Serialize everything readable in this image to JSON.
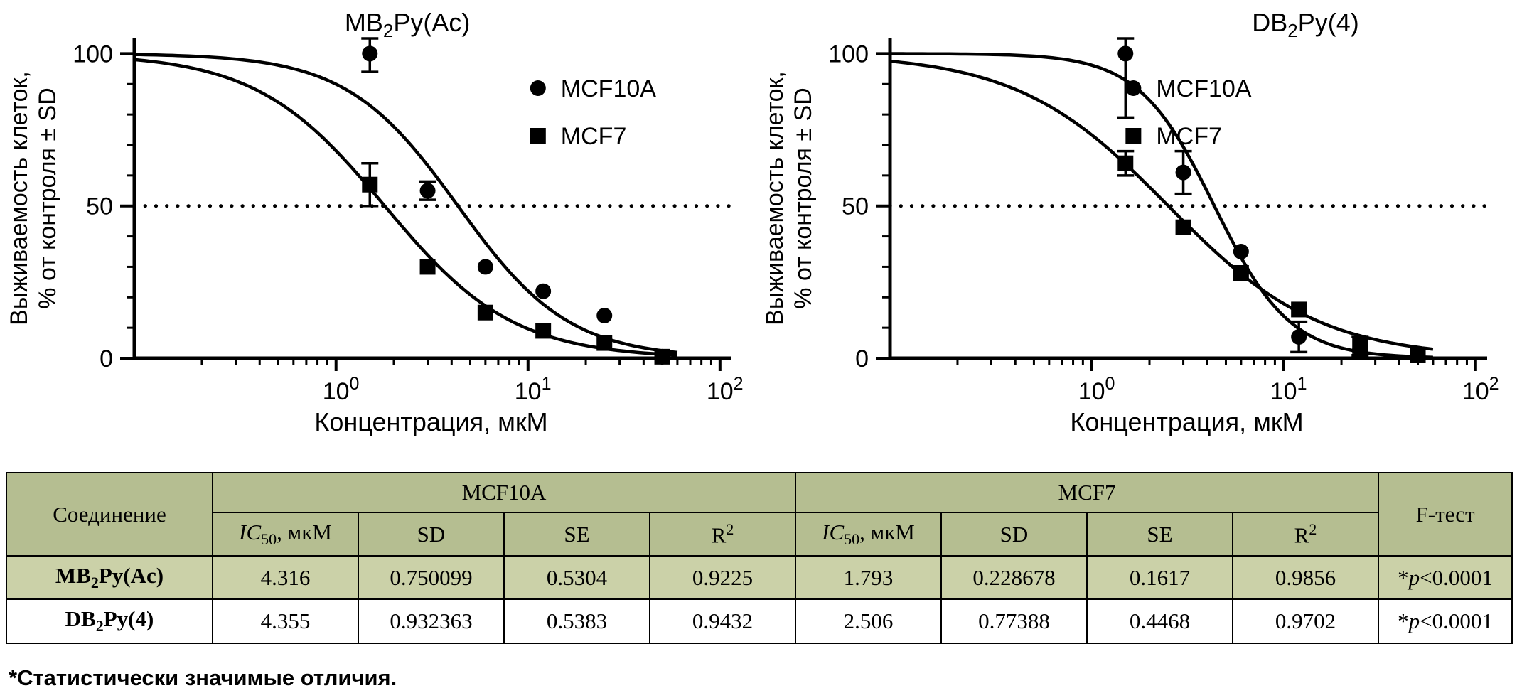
{
  "style": {
    "table_header_bg": "#b5be91",
    "table_row_tint": "#cbd1a8",
    "plot_color": "#000000"
  },
  "chart_data": [
    {
      "type": "scatter",
      "title": {
        "base": "MB",
        "sub": "2",
        "rest": "Py(Ac)"
      },
      "xlabel": "Концентрация, мкМ",
      "ylabel": [
        "Выживаемость клеток,",
        "% от контроля ± SD"
      ],
      "x_scale": "log",
      "xlim": [
        0.089,
        110
      ],
      "ylim": [
        0,
        105
      ],
      "yticks_major": [
        0,
        50,
        100
      ],
      "ytick_minor_step": 10,
      "xtick_exponents": [
        0,
        1,
        2
      ],
      "reference_line_y": 50,
      "grid": false,
      "legend_position": "inside-top-right",
      "layout": {
        "title_x_frac": 0.46,
        "legend_x_frac": 0.68
      },
      "series": [
        {
          "name": "MCF10A",
          "marker": "circle",
          "color": "#000000",
          "points": [
            {
              "x": 1.5,
              "y": 100,
              "sd": 6
            },
            {
              "x": 3,
              "y": 55,
              "sd": 3
            },
            {
              "x": 6,
              "y": 30,
              "sd": 1.5
            },
            {
              "x": 12,
              "y": 22,
              "sd": 1
            },
            {
              "x": 25,
              "y": 14,
              "sd": 1
            },
            {
              "x": 50,
              "y": 0.5,
              "sd": 1
            }
          ],
          "fit": {
            "ic50": 4.316,
            "hill": 1.5,
            "top": 100,
            "bottom": 0,
            "xmax": 60
          }
        },
        {
          "name": "MCF7",
          "marker": "square",
          "color": "#000000",
          "points": [
            {
              "x": 1.5,
              "y": 57,
              "sd": 7
            },
            {
              "x": 3,
              "y": 30,
              "sd": 2
            },
            {
              "x": 6,
              "y": 15,
              "sd": 1.5
            },
            {
              "x": 12,
              "y": 9,
              "sd": 1
            },
            {
              "x": 25,
              "y": 5,
              "sd": 1
            },
            {
              "x": 50,
              "y": 0.5,
              "sd": 1
            }
          ],
          "fit": {
            "ic50": 1.793,
            "hill": 1.3,
            "top": 100,
            "bottom": 0,
            "xmax": 60
          }
        }
      ]
    },
    {
      "type": "scatter",
      "title": {
        "base": "DB",
        "sub": "2",
        "rest": "Py(4)"
      },
      "xlabel": "Концентрация, мкМ",
      "ylabel": [
        "Выживаемость клеток,",
        "% от контроля ± SD"
      ],
      "x_scale": "log",
      "xlim": [
        0.089,
        110
      ],
      "ylim": [
        0,
        105
      ],
      "yticks_major": [
        0,
        50,
        100
      ],
      "ytick_minor_step": 10,
      "xtick_exponents": [
        0,
        1,
        2
      ],
      "reference_line_y": 50,
      "grid": false,
      "legend_position": "inside-top-right",
      "layout": {
        "title_x_frac": 0.7,
        "legend_x_frac": 0.41
      },
      "series": [
        {
          "name": "MCF10A",
          "marker": "circle",
          "color": "#000000",
          "points": [
            {
              "x": 1.5,
              "y": 100,
              "sd": 21
            },
            {
              "x": 3,
              "y": 61,
              "sd": 7
            },
            {
              "x": 6,
              "y": 35,
              "sd": 2
            },
            {
              "x": 12,
              "y": 7,
              "sd": 5
            },
            {
              "x": 25,
              "y": 3,
              "sd": 2
            },
            {
              "x": 50,
              "y": 1,
              "sd": 1
            }
          ],
          "fit": {
            "ic50": 4.355,
            "hill": 2.2,
            "top": 100,
            "bottom": 0,
            "xmax": 60
          }
        },
        {
          "name": "MCF7",
          "marker": "square",
          "color": "#000000",
          "points": [
            {
              "x": 1.5,
              "y": 64,
              "sd": 4
            },
            {
              "x": 3,
              "y": 43,
              "sd": 2
            },
            {
              "x": 6,
              "y": 28,
              "sd": 2
            },
            {
              "x": 12,
              "y": 16,
              "sd": 2
            },
            {
              "x": 25,
              "y": 4,
              "sd": 3
            },
            {
              "x": 50,
              "y": 1,
              "sd": 1
            }
          ],
          "fit": {
            "ic50": 2.506,
            "hill": 1.1,
            "top": 100,
            "bottom": 0,
            "xmax": 60
          }
        }
      ]
    }
  ],
  "table": {
    "col_compound": "Соединение",
    "group_mcf10a": "MCF10A",
    "group_mcf7": "MCF7",
    "col_ftest": "F-тест",
    "subheaders": {
      "ic50_it": "IC",
      "ic50_sub": "50",
      "ic50_rest": ", мкМ",
      "sd": "SD",
      "se": "SE",
      "r2_base": "R",
      "r2_sup": "2"
    },
    "rows": [
      {
        "compound_base": "MB",
        "compound_sub": "2",
        "compound_rest": "Py(Ac)",
        "mcf10a_ic50": "4.316",
        "mcf10a_sd": "0.750099",
        "mcf10a_se": "0.5304",
        "mcf10a_r2": "0.9225",
        "mcf7_ic50": "1.793",
        "mcf7_sd": "0.228678",
        "mcf7_se": "0.1617",
        "mcf7_r2": "0.9856",
        "ftest_star": "*",
        "ftest_p": "p",
        "ftest_rest": "<0.0001"
      },
      {
        "compound_base": "DB",
        "compound_sub": "2",
        "compound_rest": "Py(4)",
        "mcf10a_ic50": "4.355",
        "mcf10a_sd": "0.932363",
        "mcf10a_se": "0.5383",
        "mcf10a_r2": "0.9432",
        "mcf7_ic50": "2.506",
        "mcf7_sd": "0.77388",
        "mcf7_se": "0.4468",
        "mcf7_r2": "0.9702",
        "ftest_star": "*",
        "ftest_p": "p",
        "ftest_rest": "<0.0001"
      }
    ]
  },
  "footnote": "*Статистически значимые отличия."
}
